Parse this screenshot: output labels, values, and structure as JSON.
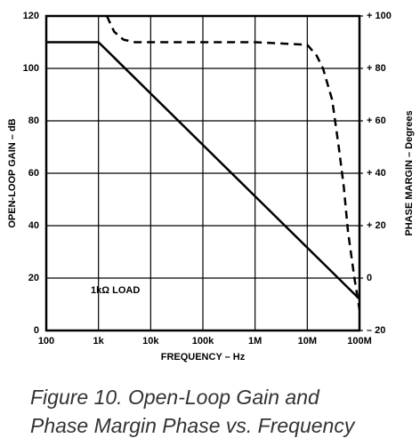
{
  "chart_data": {
    "type": "line",
    "xlabel": "FREQUENCY – Hz",
    "ylabel": "OPEN-LOOP GAIN – dB",
    "y2label": "PHASE MARGIN – Degrees",
    "annotation": "1kΩ LOAD",
    "caption": [
      "Figure 10.  Open-Loop Gain and",
      "Phase Margin Phase vs. Frequency"
    ],
    "xscale": "log",
    "grid": true,
    "xlim": [
      100,
      100000000
    ],
    "xticks": [
      100,
      {
        "value": 1000,
        "label": "1k"
      },
      {
        "value": 10000,
        "label": "10k"
      },
      {
        "value": 100000,
        "label": "100k"
      },
      {
        "value": 1000000,
        "label": "1M"
      },
      {
        "value": 10000000,
        "label": "10M"
      },
      {
        "value": 100000000,
        "label": "100M"
      }
    ],
    "ylim": [
      0,
      120
    ],
    "yticks": [
      0,
      20,
      40,
      60,
      80,
      100,
      120
    ],
    "y2lim": [
      -20,
      100
    ],
    "y2ticks": [
      {
        "value": -20,
        "label": "– 20"
      },
      0,
      {
        "value": 20,
        "label": "+ 20"
      },
      {
        "value": 40,
        "label": "+ 40"
      },
      {
        "value": 60,
        "label": "+ 60"
      },
      {
        "value": 80,
        "label": "+ 80"
      },
      {
        "value": 100,
        "label": "+ 100"
      }
    ],
    "series": [
      {
        "color": "#000000",
        "dash": "solid",
        "x": [
          100,
          1000,
          100000000
        ],
        "values": [
          110,
          110,
          12
        ]
      },
      {
        "color": "#000000",
        "dash": "dashed",
        "axis": "y2",
        "x": [
          1450,
          2000,
          3000,
          5000,
          1000000,
          10000000,
          15000000,
          20000000,
          30000000,
          40000000,
          50000000,
          60000000,
          80000000,
          100000000
        ],
        "values": [
          100,
          94,
          91,
          90,
          90,
          89,
          85,
          80,
          68,
          50,
          35,
          18,
          0,
          -12
        ]
      }
    ]
  }
}
